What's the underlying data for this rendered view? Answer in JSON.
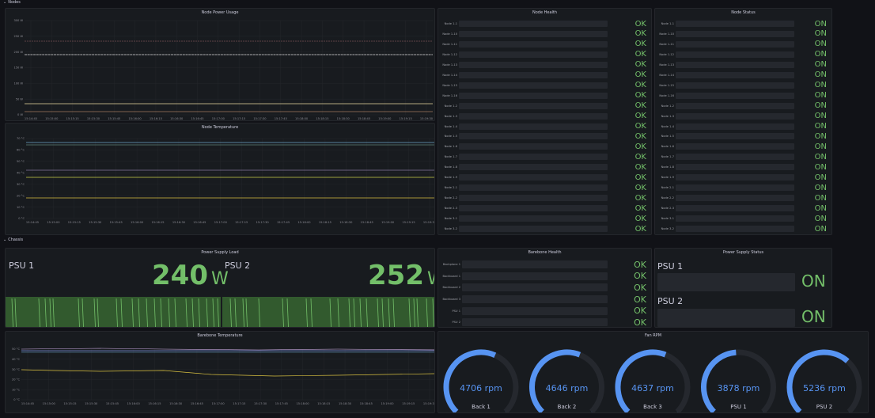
{
  "rows": {
    "nodes": "Nodes",
    "chassis": "Chassis"
  },
  "power": {
    "title": "Node Power Usage",
    "yticks": [
      "300 W",
      "250 W",
      "200 W",
      "150 W",
      "100 W",
      "50 W",
      "0 W"
    ],
    "xticks": [
      "15:14:45",
      "15:15:00",
      "15:15:15",
      "15:15:30",
      "15:15:45",
      "15:16:00",
      "15:16:15",
      "15:16:30",
      "15:16:45",
      "15:17:00",
      "15:17:15",
      "15:17:30",
      "15:17:45",
      "15:18:00",
      "15:18:15",
      "15:18:30",
      "15:18:45",
      "15:19:00",
      "15:19:15",
      "15:19:30"
    ]
  },
  "temp": {
    "title": "Node Temperature",
    "yticks": [
      "70 °C",
      "60 °C",
      "50 °C",
      "40 °C",
      "30 °C",
      "20 °C",
      "10 °C",
      "0 °C"
    ],
    "xticks": [
      "15:14:45",
      "15:15:00",
      "15:15:15",
      "15:15:30",
      "15:15:45",
      "15:16:00",
      "15:16:15",
      "15:16:30",
      "15:16:45",
      "15:17:00",
      "15:17:15",
      "15:17:30",
      "15:17:45",
      "15:18:00",
      "15:18:15",
      "15:18:30",
      "15:18:45",
      "15:19:00",
      "15:19:15",
      "15:19:30"
    ]
  },
  "health": {
    "title": "Node Health",
    "items": [
      {
        "label": "Node 1-1",
        "value": "OK"
      },
      {
        "label": "Node 1-10",
        "value": "OK"
      },
      {
        "label": "Node 1-11",
        "value": "OK"
      },
      {
        "label": "Node 1-12",
        "value": "OK"
      },
      {
        "label": "Node 1-13",
        "value": "OK"
      },
      {
        "label": "Node 1-14",
        "value": "OK"
      },
      {
        "label": "Node 1-15",
        "value": "OK"
      },
      {
        "label": "Node 1-16",
        "value": "OK"
      },
      {
        "label": "Node 1-2",
        "value": "OK"
      },
      {
        "label": "Node 1-3",
        "value": "OK"
      },
      {
        "label": "Node 1-4",
        "value": "OK"
      },
      {
        "label": "Node 1-5",
        "value": "OK"
      },
      {
        "label": "Node 1-6",
        "value": "OK"
      },
      {
        "label": "Node 1-7",
        "value": "OK"
      },
      {
        "label": "Node 1-8",
        "value": "OK"
      },
      {
        "label": "Node 1-9",
        "value": "OK"
      },
      {
        "label": "Node 2-1",
        "value": "OK"
      },
      {
        "label": "Node 2-2",
        "value": "OK"
      },
      {
        "label": "Node 2-3",
        "value": "OK"
      },
      {
        "label": "Node 3-1",
        "value": "OK"
      },
      {
        "label": "Node 3-2",
        "value": "OK"
      },
      {
        "label": "Node 3-3",
        "value": "OK"
      }
    ]
  },
  "status": {
    "title": "Node Status",
    "items": [
      {
        "label": "Node 1-1",
        "value": "ON"
      },
      {
        "label": "Node 1-10",
        "value": "ON"
      },
      {
        "label": "Node 1-11",
        "value": "ON"
      },
      {
        "label": "Node 1-12",
        "value": "ON"
      },
      {
        "label": "Node 1-13",
        "value": "ON"
      },
      {
        "label": "Node 1-14",
        "value": "ON"
      },
      {
        "label": "Node 1-15",
        "value": "ON"
      },
      {
        "label": "Node 1-16",
        "value": "ON"
      },
      {
        "label": "Node 1-2",
        "value": "ON"
      },
      {
        "label": "Node 1-3",
        "value": "ON"
      },
      {
        "label": "Node 1-4",
        "value": "ON"
      },
      {
        "label": "Node 1-5",
        "value": "ON"
      },
      {
        "label": "Node 1-6",
        "value": "ON"
      },
      {
        "label": "Node 1-7",
        "value": "ON"
      },
      {
        "label": "Node 1-8",
        "value": "ON"
      },
      {
        "label": "Node 1-9",
        "value": "ON"
      },
      {
        "label": "Node 2-1",
        "value": "ON"
      },
      {
        "label": "Node 2-2",
        "value": "ON"
      },
      {
        "label": "Node 2-3",
        "value": "ON"
      },
      {
        "label": "Node 3-1",
        "value": "ON"
      },
      {
        "label": "Node 3-2",
        "value": "ON"
      },
      {
        "label": "Node 3-3",
        "value": "ON"
      }
    ]
  },
  "psuload": {
    "title": "Power Supply Load",
    "psu1": {
      "label": "PSU 1",
      "value": "240",
      "unit": "W"
    },
    "psu2": {
      "label": "PSU 2",
      "value": "252",
      "unit": "W"
    }
  },
  "barebone": {
    "title": "Barebone Health",
    "items": [
      {
        "label": "Backplane 1",
        "value": "OK"
      },
      {
        "label": "Backboard 1",
        "value": "OK"
      },
      {
        "label": "Backboard 2",
        "value": "OK"
      },
      {
        "label": "Backboard 3",
        "value": "OK"
      },
      {
        "label": "PSU 1",
        "value": "OK"
      },
      {
        "label": "PSU 2",
        "value": "OK"
      }
    ]
  },
  "psustatus": {
    "title": "Power Supply Status",
    "psu1": {
      "label": "PSU 1",
      "value": "ON"
    },
    "psu2": {
      "label": "PSU 2",
      "value": "ON"
    }
  },
  "bbtemp": {
    "title": "Barebone Temperature",
    "yticks": [
      "50 °C",
      "40 °C",
      "30 °C",
      "20 °C",
      "10 °C",
      "0 °C"
    ],
    "xticks": [
      "15:14:45",
      "15:15:00",
      "15:15:15",
      "15:15:30",
      "15:15:45",
      "15:16:00",
      "15:16:15",
      "15:16:30",
      "15:16:45",
      "15:17:00",
      "15:17:15",
      "15:17:30",
      "15:17:45",
      "15:18:00",
      "15:18:15",
      "15:18:30",
      "15:18:45",
      "15:19:00",
      "15:19:15",
      "15:19:30"
    ]
  },
  "fan": {
    "title": "Fan RPM",
    "max_rpm": 8000,
    "gauges": [
      {
        "label": "Back 1",
        "text": "4706 rpm",
        "value": 4706
      },
      {
        "label": "Back 2",
        "text": "4646 rpm",
        "value": 4646
      },
      {
        "label": "Back 3",
        "text": "4637 rpm",
        "value": 4637
      },
      {
        "label": "PSU 1",
        "text": "3878 rpm",
        "value": 3878
      },
      {
        "label": "PSU 2",
        "text": "5236 rpm",
        "value": 5236
      }
    ]
  },
  "colors": {
    "ok": "#73bf69",
    "gauge": "#5794f2",
    "track": "#25282e"
  }
}
